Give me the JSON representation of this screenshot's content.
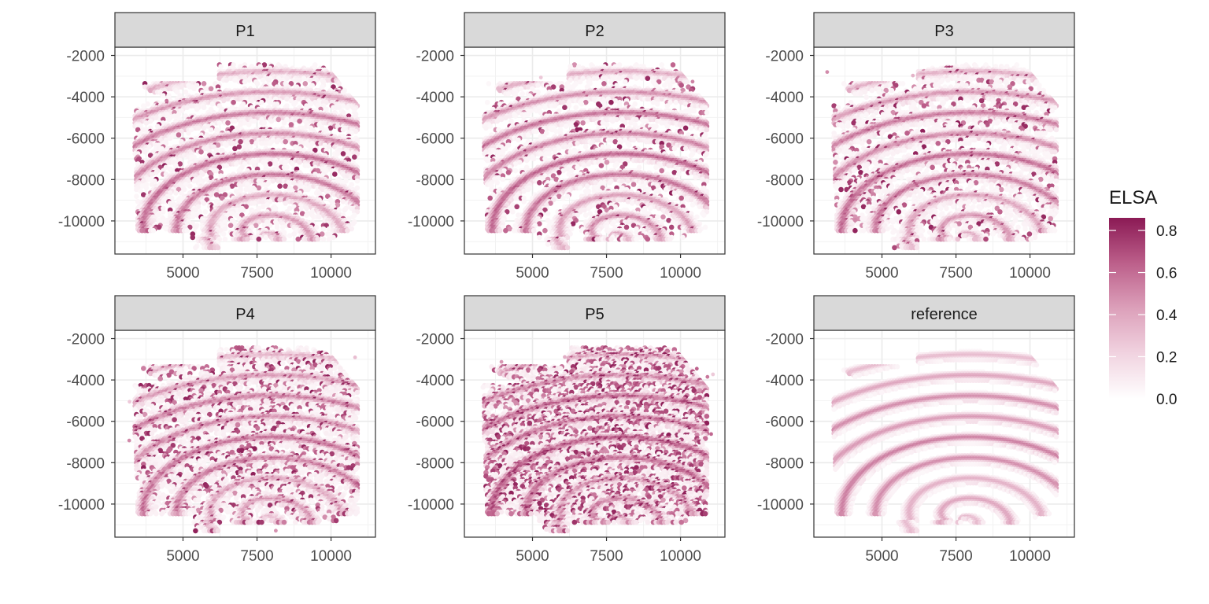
{
  "chart_data": {
    "type": "heatmap",
    "subtype": "faceted spatial hex-spot map",
    "facets": [
      "P1",
      "P2",
      "P3",
      "P4",
      "P5",
      "reference"
    ],
    "x_ticks": [
      5000,
      7500,
      10000
    ],
    "y_ticks": [
      -2000,
      -4000,
      -6000,
      -8000,
      -10000
    ],
    "xlim": [
      2700,
      11500
    ],
    "ylim": [
      -11600,
      -1600
    ],
    "legend": {
      "title": "ELSA",
      "placement": "right",
      "ticks": [
        0.0,
        0.2,
        0.4,
        0.6,
        0.8
      ],
      "tick_labels": [
        "0.0",
        "0.2",
        "0.4",
        "0.6",
        "0.8"
      ],
      "range": [
        0.0,
        0.86
      ],
      "color_low": "#ffffff",
      "color_high": "#8b1a55"
    },
    "grid": true,
    "theme": "bw"
  }
}
